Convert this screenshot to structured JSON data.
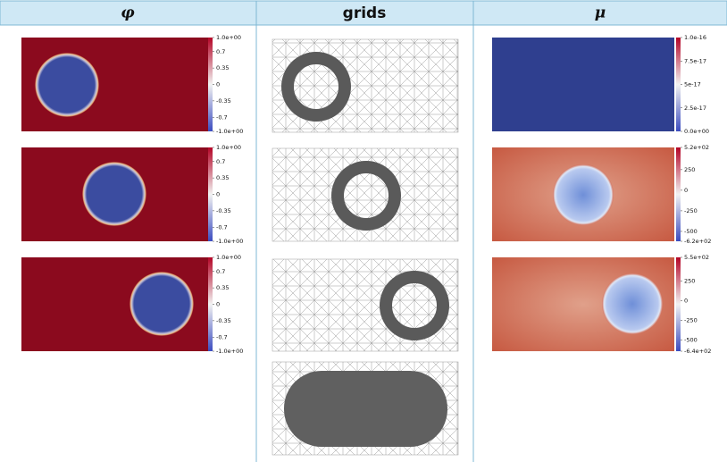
{
  "header": {
    "phi": "φ",
    "grids": "grids",
    "mu": "μ"
  },
  "phi_panels": [
    {
      "colorbar": [
        "1.0e+00",
        "0.7",
        "0.35",
        "0",
        "-0.35",
        "-0.7",
        "-1.0e+00"
      ]
    },
    {
      "colorbar": [
        "1.0e+00",
        "0.7",
        "0.35",
        "0",
        "-0.35",
        "-0.7",
        "-1.0e+00"
      ]
    },
    {
      "colorbar": [
        "1.0e+00",
        "0.7",
        "0.35",
        "0",
        "-0.35",
        "-0.7",
        "-1.0e+00"
      ]
    }
  ],
  "mu_panels": [
    {
      "colorbar": [
        "1.0e-16",
        "7.5e-17",
        "5e-17",
        "2.5e-17",
        "0.0e+00"
      ]
    },
    {
      "colorbar": [
        "5.2e+02",
        "250",
        "0",
        "-250",
        "-500",
        "-6.2e+02"
      ]
    },
    {
      "colorbar": [
        "5.5e+02",
        "250",
        "0",
        "-250",
        "-500",
        "-6.4e+02"
      ]
    }
  ]
}
